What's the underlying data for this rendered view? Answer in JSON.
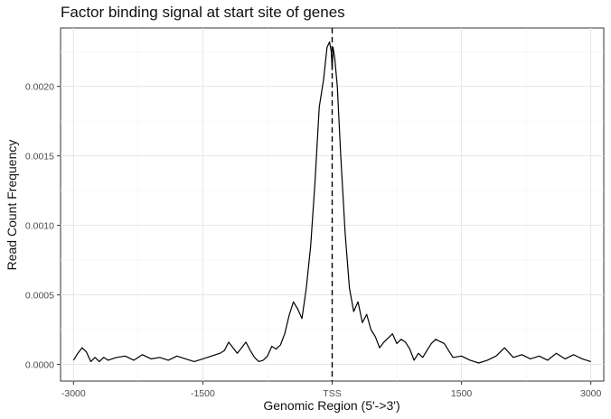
{
  "chart_data": {
    "type": "line",
    "title": "Factor binding signal at start site of genes",
    "xlabel": "Genomic Region (5'->3')",
    "ylabel": "Read Count Frequency",
    "xlim": [
      -3150,
      3150
    ],
    "ylim": [
      -0.00012,
      0.00242
    ],
    "x_ticks": [
      {
        "value": -3000,
        "label": "-3000"
      },
      {
        "value": -1500,
        "label": "-1500"
      },
      {
        "value": 0,
        "label": "TSS"
      },
      {
        "value": 1500,
        "label": "1500"
      },
      {
        "value": 3000,
        "label": "3000"
      }
    ],
    "y_ticks": [
      {
        "value": 0,
        "label": "0.0000"
      },
      {
        "value": 0.0005,
        "label": "0.0005"
      },
      {
        "value": 0.001,
        "label": "0.0010"
      },
      {
        "value": 0.0015,
        "label": "0.0015"
      },
      {
        "value": 0.002,
        "label": "0.0020"
      }
    ],
    "grid": true,
    "reference_line": {
      "x": 0,
      "style": "dashed"
    },
    "series": [
      {
        "color": "#000000",
        "x": [
          -3000,
          -2950,
          -2900,
          -2850,
          -2800,
          -2750,
          -2700,
          -2650,
          -2600,
          -2500,
          -2400,
          -2300,
          -2200,
          -2100,
          -2000,
          -1900,
          -1800,
          -1700,
          -1600,
          -1500,
          -1400,
          -1300,
          -1250,
          -1200,
          -1150,
          -1100,
          -1050,
          -1000,
          -950,
          -900,
          -850,
          -800,
          -750,
          -700,
          -650,
          -600,
          -550,
          -500,
          -450,
          -400,
          -350,
          -300,
          -250,
          -200,
          -150,
          -100,
          -60,
          -30,
          -10,
          0,
          10,
          30,
          60,
          100,
          150,
          200,
          250,
          300,
          350,
          400,
          450,
          500,
          550,
          600,
          650,
          700,
          750,
          800,
          850,
          900,
          950,
          1000,
          1050,
          1100,
          1150,
          1200,
          1300,
          1400,
          1500,
          1600,
          1700,
          1800,
          1900,
          2000,
          2100,
          2200,
          2300,
          2400,
          2500,
          2600,
          2700,
          2800,
          2900,
          3000
        ],
        "y": [
          3e-05,
          8e-05,
          0.00012,
          9e-05,
          2e-05,
          5e-05,
          2e-05,
          5e-05,
          3e-05,
          5e-05,
          6e-05,
          3e-05,
          7e-05,
          4e-05,
          5e-05,
          3e-05,
          6e-05,
          4e-05,
          2e-05,
          4e-05,
          6e-05,
          8e-05,
          0.0001,
          0.00016,
          0.00012,
          8e-05,
          0.00012,
          0.00016,
          0.0001,
          5e-05,
          2e-05,
          3e-05,
          6e-05,
          0.00013,
          0.00011,
          0.00014,
          0.00022,
          0.00035,
          0.00045,
          0.0004,
          0.00033,
          0.00055,
          0.00085,
          0.0013,
          0.00185,
          0.00205,
          0.00228,
          0.00232,
          0.00225,
          0.00212,
          0.00228,
          0.0022,
          0.002,
          0.0015,
          0.00095,
          0.00055,
          0.00038,
          0.00045,
          0.0003,
          0.00036,
          0.00025,
          0.0002,
          0.00012,
          0.00016,
          0.00019,
          0.00022,
          0.00015,
          0.00018,
          0.00016,
          0.00011,
          3e-05,
          8e-05,
          5e-05,
          0.0001,
          0.00015,
          0.00018,
          0.00015,
          5e-05,
          6e-05,
          3e-05,
          1e-05,
          3e-05,
          6e-05,
          0.00012,
          5e-05,
          7e-05,
          4e-05,
          6e-05,
          3e-05,
          8e-05,
          4e-05,
          7e-05,
          4e-05,
          2e-05
        ]
      }
    ]
  }
}
